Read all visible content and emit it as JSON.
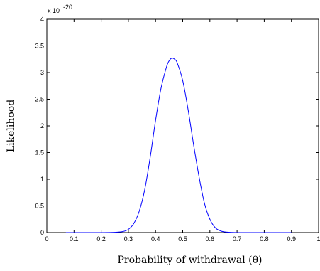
{
  "chart_data": {
    "type": "line",
    "title": "",
    "xlabel": "Probability of withdrawal (θ)",
    "ylabel": "Likelihood",
    "y_multiplier": "x 10",
    "y_exponent": "-20",
    "xlim": [
      0,
      1
    ],
    "ylim": [
      0,
      4
    ],
    "x_ticks": [
      "0",
      "0.1",
      "0.2",
      "0.3",
      "0.4",
      "0.5",
      "0.6",
      "0.7",
      "0.8",
      "0.9",
      "1"
    ],
    "y_ticks": [
      "0",
      "0.5",
      "1",
      "1.5",
      "2",
      "2.5",
      "3",
      "3.5",
      "4"
    ],
    "grid": false,
    "line_color": "#0000ff",
    "series": [
      {
        "x": [
          0.07,
          0.1,
          0.15,
          0.2,
          0.25,
          0.28,
          0.3,
          0.32,
          0.34,
          0.36,
          0.38,
          0.4,
          0.42,
          0.44,
          0.45,
          0.46,
          0.47,
          0.48,
          0.5,
          0.52,
          0.54,
          0.56,
          0.58,
          0.6,
          0.62,
          0.64,
          0.66,
          0.7,
          0.8,
          0.9
        ],
        "y": [
          0,
          0,
          0,
          0,
          0.005,
          0.02,
          0.06,
          0.17,
          0.4,
          0.8,
          1.4,
          2.1,
          2.7,
          3.1,
          3.22,
          3.27,
          3.25,
          3.18,
          2.85,
          2.3,
          1.65,
          1.05,
          0.55,
          0.25,
          0.09,
          0.03,
          0.01,
          0,
          0,
          0
        ]
      }
    ]
  }
}
